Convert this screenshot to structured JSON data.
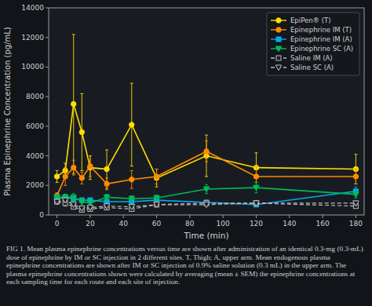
{
  "chart_data": {
    "type": "line",
    "x_label": "Time (min)",
    "y_label": "Plasma Epinephrine Concentration (pg/mL)",
    "caption": "FIG 1. Mean plasma epinephrine concentrations versus time are shown after administration of an identical 0.3-mg (0.3-mL) dose of epinephrine by IM or SC injection in 2 different sites. T, Thigh; A, upper arm. Mean endogenous plasma epinephrine concentrations are shown after IM or SC injection of 0.9% saline solution (0.3 mL) in the upper arm. The plasma epinephrine concentrations shown were calculated by averaging (mean ± SEM) the epinephrine concentrations at each sampling time for each route and each site of injection.",
    "xlim": [
      -5,
      185
    ],
    "ylim": [
      0,
      14000
    ],
    "xticks": [
      0,
      20,
      40,
      60,
      80,
      100,
      120,
      140,
      160,
      180
    ],
    "yticks": [
      0,
      2000,
      4000,
      6000,
      8000,
      10000,
      12000,
      14000
    ],
    "grid": false,
    "legend": "upper right",
    "x": [
      0,
      5,
      10,
      15,
      20,
      30,
      45,
      60,
      90,
      120,
      180
    ],
    "series": [
      {
        "name": "EpiPen® (T)",
        "color": "#ffdd00",
        "marker": "circle",
        "line_style": "solid",
        "values": [
          2600,
          3000,
          7500,
          5600,
          3200,
          3100,
          6100,
          2500,
          4000,
          3200,
          3100
        ],
        "errors": [
          400,
          500,
          4700,
          2600,
          800,
          1300,
          2800,
          600,
          1400,
          1000,
          1000
        ]
      },
      {
        "name": "Epinephrine IM (T)",
        "color": "#ff8c00",
        "marker": "circle",
        "line_style": "solid",
        "values": [
          1300,
          2600,
          3200,
          2500,
          3300,
          2100,
          2400,
          2600,
          4300,
          2600,
          2600
        ],
        "errors": [
          200,
          600,
          500,
          400,
          700,
          400,
          600,
          500,
          700,
          700,
          500
        ]
      },
      {
        "name": "Epinephrine IM (A)",
        "color": "#00aaee",
        "marker": "square",
        "line_style": "solid",
        "values": [
          1100,
          1200,
          1100,
          1000,
          1000,
          900,
          900,
          1000,
          850,
          700,
          1600
        ],
        "errors": [
          200,
          200,
          150,
          150,
          150,
          100,
          150,
          150,
          150,
          100,
          300
        ]
      },
      {
        "name": "Epinephrine SC (A)",
        "color": "#00bb55",
        "marker": "triangle-down",
        "line_style": "solid",
        "values": [
          1200,
          1200,
          1200,
          900,
          800,
          1200,
          1100,
          1150,
          1750,
          1850,
          1400
        ],
        "errors": [
          200,
          200,
          250,
          200,
          200,
          200,
          200,
          200,
          300,
          350,
          250
        ]
      },
      {
        "name": "Saline IM (A)",
        "color": "#bbbbbb",
        "marker": "open-square",
        "line_style": "dashed",
        "values": [
          900,
          800,
          550,
          350,
          400,
          500,
          400,
          700,
          800,
          800,
          600
        ],
        "errors": [
          150,
          200,
          100,
          100,
          100,
          100,
          100,
          100,
          100,
          150,
          100
        ]
      },
      {
        "name": "Saline SC (A)",
        "color": "#bbbbbb",
        "marker": "open-triangle-down",
        "line_style": "dashed",
        "values": [
          900,
          1000,
          700,
          450,
          500,
          600,
          550,
          700,
          700,
          800,
          800
        ],
        "errors": [
          150,
          150,
          100,
          100,
          100,
          100,
          100,
          150,
          100,
          150,
          150
        ]
      }
    ]
  }
}
